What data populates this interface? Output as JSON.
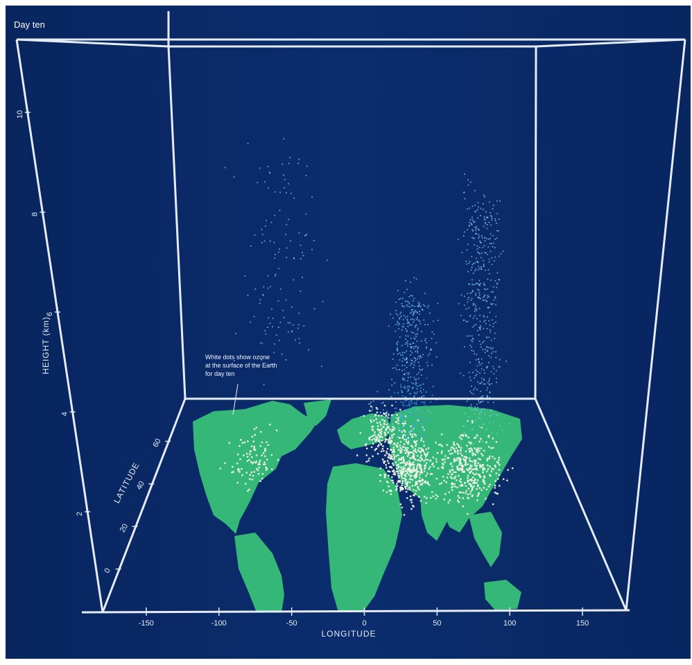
{
  "figure": {
    "corner_title": "Day ten",
    "annotation_lines": [
      "White dots show ozone",
      "at the surface of the Earth",
      "for day ten"
    ],
    "colors": {
      "background": "#0a2a66",
      "land": "#35b877",
      "box_frame": "#e6ecf6",
      "surface_points": "#f4f4ea",
      "upper_points": "#7fc8ea",
      "dense_points": "#3aa6e6"
    }
  },
  "chart_data": {
    "type": "scatter",
    "title": "Day ten",
    "xlabel": "LONGITUDE",
    "ylabel": "HEIGHT (km)",
    "zlabel": "LATITUDE",
    "x_ticks": [
      "-150",
      "-100",
      "-50",
      "0",
      "50",
      "100",
      "150"
    ],
    "y_ticks": [
      "10",
      "8",
      "6",
      "4",
      "2"
    ],
    "z_ticks": [
      "60",
      "40",
      "20",
      "0"
    ],
    "xlim": [
      -180,
      180
    ],
    "ylim": [
      0,
      12
    ],
    "zlim": [
      -20,
      80
    ],
    "grid": false,
    "legend": "none",
    "series": [
      {
        "clusters": [
          {
            "lon": 20,
            "lat": 55,
            "count": 220,
            "spread_lon": 18,
            "spread_lat": 10,
            "h_min": 0,
            "h_max": 1.5
          },
          {
            "lon": 40,
            "lat": 40,
            "count": 360,
            "spread_lon": 22,
            "spread_lat": 14,
            "h_min": 0,
            "h_max": 1
          },
          {
            "lon": 90,
            "lat": 40,
            "count": 320,
            "spread_lon": 28,
            "spread_lat": 14,
            "h_min": 0,
            "h_max": 1
          },
          {
            "lon": -95,
            "lat": 45,
            "count": 90,
            "spread_lon": 22,
            "spread_lat": 10,
            "h_min": 0,
            "h_max": 1
          },
          {
            "lon": 45,
            "lat": 45,
            "count": 520,
            "spread_lon": 18,
            "spread_lat": 12,
            "h_min": 0.5,
            "h_max": 6
          },
          {
            "lon": 105,
            "lat": 45,
            "count": 520,
            "spread_lon": 18,
            "spread_lat": 12,
            "h_min": 0.5,
            "h_max": 9.5
          },
          {
            "lon": -70,
            "lat": 45,
            "count": 130,
            "spread_lon": 40,
            "spread_lat": 16,
            "h_min": 4,
            "h_max": 11
          }
        ]
      }
    ]
  }
}
